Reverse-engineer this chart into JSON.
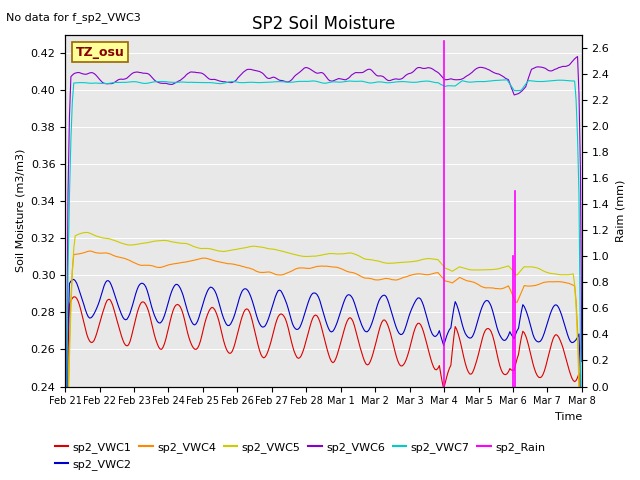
{
  "title": "SP2 Soil Moisture",
  "no_data_text": "No data for f_sp2_VWC3",
  "tz_label": "TZ_osu",
  "ylabel_left": "Soil Moisture (m3/m3)",
  "ylabel_right": "Raim (mm)",
  "xlabel": "Time",
  "ylim_left": [
    0.24,
    0.43
  ],
  "ylim_right": [
    0.0,
    2.7
  ],
  "background_color": "#e8e8e8",
  "series_colors": {
    "sp2_VWC1": "#dd0000",
    "sp2_VWC2": "#0000cc",
    "sp2_VWC4": "#ff8800",
    "sp2_VWC5": "#cccc00",
    "sp2_VWC6": "#8800cc",
    "sp2_VWC7": "#00cccc",
    "sp2_Rain": "#ff00ff"
  },
  "tz_box_color": "#ffff99",
  "tz_text_color": "#880000",
  "x_tick_labels": [
    "Feb 21",
    "Feb 22",
    "Feb 23",
    "Feb 24",
    "Feb 25",
    "Feb 26",
    "Feb 27",
    "Feb 28",
    "Mar 1",
    "Mar 2",
    "Mar 3",
    "Mar 4",
    "Mar 5",
    "Mar 6",
    "Mar 7",
    "Mar 8"
  ],
  "yticks_left": [
    0.24,
    0.26,
    0.28,
    0.3,
    0.32,
    0.34,
    0.36,
    0.38,
    0.4,
    0.42
  ],
  "yticks_right": [
    0.0,
    0.2,
    0.4,
    0.6,
    0.8,
    1.0,
    1.2,
    1.4,
    1.6,
    1.8,
    2.0,
    2.2,
    2.4,
    2.6
  ]
}
